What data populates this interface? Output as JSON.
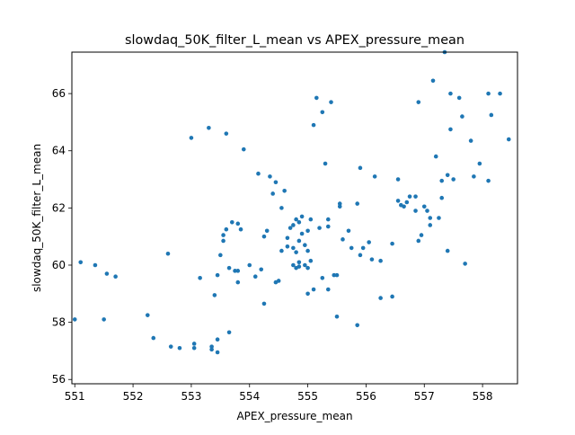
{
  "chart_data": {
    "type": "scatter",
    "title": "slowdaq_50K_filter_L_mean vs APEX_pressure_mean",
    "xlabel": "APEX_pressure_mean",
    "ylabel": "slowdaq_50K_filter_L_mean",
    "xlim": [
      550.95,
      558.6
    ],
    "ylim": [
      55.85,
      67.45
    ],
    "xticks": [
      551,
      552,
      553,
      554,
      555,
      556,
      557,
      558
    ],
    "yticks": [
      56,
      58,
      60,
      62,
      64,
      66
    ],
    "grid": false,
    "legend": "none",
    "marker_color": "#1f77b4",
    "series": [
      {
        "points": [
          [
            551.0,
            58.1
          ],
          [
            551.1,
            60.1
          ],
          [
            551.35,
            60.0
          ],
          [
            551.5,
            58.1
          ],
          [
            551.55,
            59.7
          ],
          [
            551.7,
            59.6
          ],
          [
            552.25,
            58.25
          ],
          [
            552.35,
            57.45
          ],
          [
            552.6,
            60.4
          ],
          [
            552.65,
            57.15
          ],
          [
            552.8,
            57.1
          ],
          [
            553.0,
            64.45
          ],
          [
            553.05,
            57.1
          ],
          [
            553.05,
            57.25
          ],
          [
            553.15,
            59.55
          ],
          [
            553.3,
            64.8
          ],
          [
            553.35,
            57.05
          ],
          [
            553.35,
            57.15
          ],
          [
            553.4,
            58.95
          ],
          [
            553.45,
            57.4
          ],
          [
            553.45,
            56.95
          ],
          [
            553.45,
            59.65
          ],
          [
            553.5,
            60.35
          ],
          [
            553.55,
            61.05
          ],
          [
            553.55,
            60.85
          ],
          [
            553.6,
            61.25
          ],
          [
            553.6,
            64.6
          ],
          [
            553.65,
            59.9
          ],
          [
            553.65,
            57.65
          ],
          [
            553.7,
            61.5
          ],
          [
            553.75,
            59.8
          ],
          [
            553.8,
            59.8
          ],
          [
            553.8,
            61.45
          ],
          [
            553.8,
            59.4
          ],
          [
            553.85,
            61.25
          ],
          [
            553.9,
            64.05
          ],
          [
            554.0,
            60.0
          ],
          [
            554.1,
            59.6
          ],
          [
            554.15,
            63.2
          ],
          [
            554.2,
            59.85
          ],
          [
            554.25,
            58.65
          ],
          [
            554.25,
            61.0
          ],
          [
            554.3,
            61.2
          ],
          [
            554.35,
            63.1
          ],
          [
            554.4,
            62.5
          ],
          [
            554.45,
            62.9
          ],
          [
            554.45,
            59.4
          ],
          [
            554.5,
            59.45
          ],
          [
            554.55,
            62.0
          ],
          [
            554.55,
            60.5
          ],
          [
            554.6,
            62.6
          ],
          [
            554.65,
            60.95
          ],
          [
            554.65,
            60.65
          ],
          [
            554.7,
            61.3
          ],
          [
            554.75,
            61.4
          ],
          [
            554.75,
            60.6
          ],
          [
            554.75,
            60.0
          ],
          [
            554.8,
            61.6
          ],
          [
            554.8,
            60.45
          ],
          [
            554.8,
            59.9
          ],
          [
            554.85,
            61.5
          ],
          [
            554.85,
            60.85
          ],
          [
            554.85,
            60.1
          ],
          [
            554.85,
            59.95
          ],
          [
            554.9,
            61.7
          ],
          [
            554.9,
            61.1
          ],
          [
            554.95,
            60.7
          ],
          [
            554.95,
            60.0
          ],
          [
            555.0,
            61.2
          ],
          [
            555.0,
            60.5
          ],
          [
            555.0,
            59.9
          ],
          [
            555.0,
            59.0
          ],
          [
            555.05,
            61.6
          ],
          [
            555.05,
            60.15
          ],
          [
            555.1,
            64.9
          ],
          [
            555.1,
            59.15
          ],
          [
            555.15,
            65.85
          ],
          [
            555.2,
            61.3
          ],
          [
            555.25,
            65.35
          ],
          [
            555.25,
            59.55
          ],
          [
            555.3,
            63.55
          ],
          [
            555.35,
            61.6
          ],
          [
            555.35,
            61.35
          ],
          [
            555.35,
            59.15
          ],
          [
            555.4,
            65.7
          ],
          [
            555.45,
            59.65
          ],
          [
            555.5,
            59.65
          ],
          [
            555.5,
            58.2
          ],
          [
            555.55,
            62.15
          ],
          [
            555.55,
            62.05
          ],
          [
            555.6,
            60.9
          ],
          [
            555.7,
            61.2
          ],
          [
            555.75,
            60.6
          ],
          [
            555.85,
            62.15
          ],
          [
            555.85,
            57.9
          ],
          [
            555.9,
            63.4
          ],
          [
            555.9,
            60.35
          ],
          [
            555.95,
            60.6
          ],
          [
            556.05,
            60.8
          ],
          [
            556.1,
            60.2
          ],
          [
            556.15,
            63.1
          ],
          [
            556.25,
            60.15
          ],
          [
            556.25,
            58.85
          ],
          [
            556.45,
            60.75
          ],
          [
            556.45,
            58.9
          ],
          [
            556.55,
            62.25
          ],
          [
            556.55,
            63.0
          ],
          [
            556.6,
            62.1
          ],
          [
            556.65,
            62.05
          ],
          [
            556.7,
            62.2
          ],
          [
            556.75,
            62.4
          ],
          [
            556.85,
            61.9
          ],
          [
            556.85,
            62.4
          ],
          [
            556.9,
            65.7
          ],
          [
            556.9,
            60.85
          ],
          [
            556.95,
            61.05
          ],
          [
            557.0,
            62.05
          ],
          [
            557.05,
            61.9
          ],
          [
            557.1,
            61.65
          ],
          [
            557.1,
            61.4
          ],
          [
            557.15,
            66.45
          ],
          [
            557.2,
            63.8
          ],
          [
            557.25,
            61.65
          ],
          [
            557.3,
            62.35
          ],
          [
            557.3,
            62.95
          ],
          [
            557.35,
            67.45
          ],
          [
            557.4,
            63.15
          ],
          [
            557.4,
            60.5
          ],
          [
            557.45,
            66.0
          ],
          [
            557.45,
            64.75
          ],
          [
            557.5,
            63.0
          ],
          [
            557.6,
            65.85
          ],
          [
            557.65,
            65.2
          ],
          [
            557.7,
            60.05
          ],
          [
            557.8,
            64.35
          ],
          [
            557.85,
            63.1
          ],
          [
            557.95,
            63.55
          ],
          [
            558.1,
            66.0
          ],
          [
            558.1,
            62.95
          ],
          [
            558.15,
            65.25
          ],
          [
            558.3,
            66.0
          ],
          [
            558.45,
            64.4
          ]
        ]
      }
    ]
  }
}
